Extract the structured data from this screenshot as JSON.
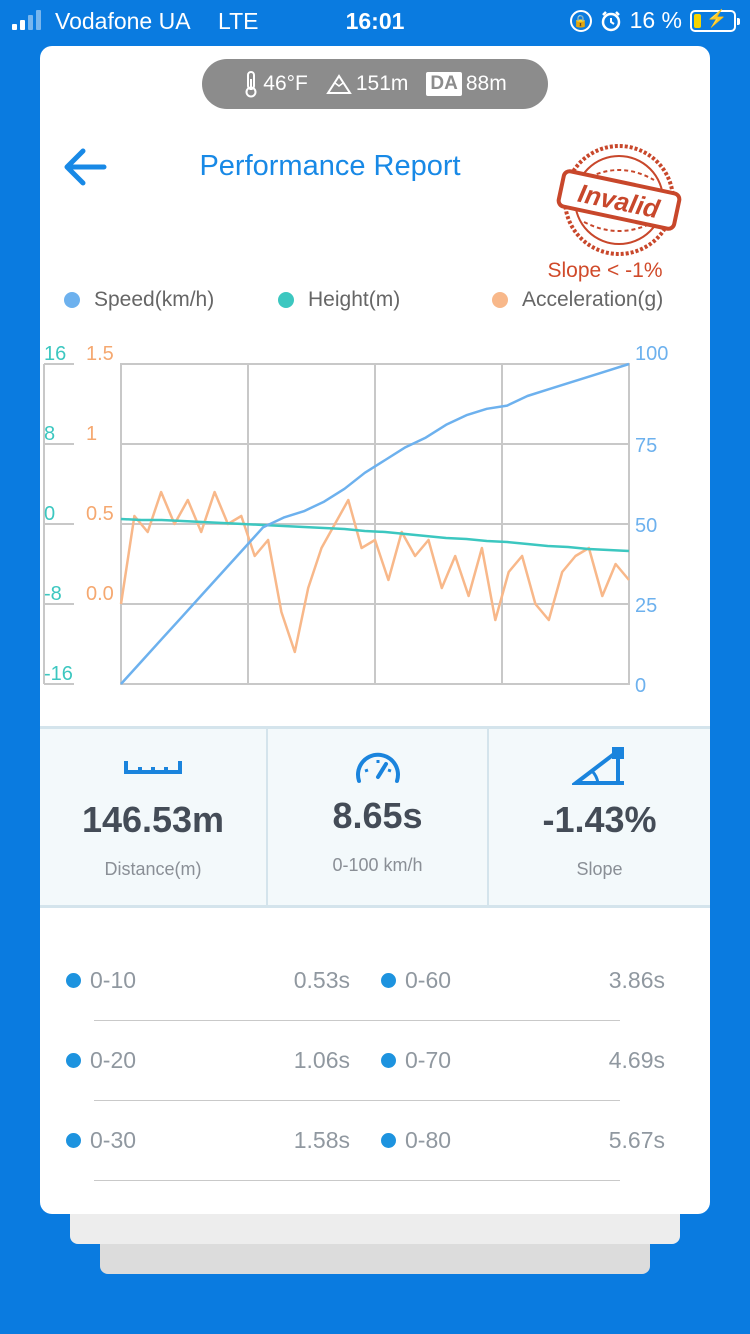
{
  "status_bar": {
    "carrier": "Vodafone UA",
    "network": "LTE",
    "time": "16:01",
    "battery": "16 %",
    "icons": [
      "orientation-lock-icon",
      "alarm-icon",
      "battery-charging-icon"
    ]
  },
  "env": {
    "temperature": "46°F",
    "altitude": "151m",
    "da_badge": "DA",
    "density_altitude": "88m"
  },
  "header": {
    "title": "Performance Report",
    "stamp_text": "Invalid",
    "stamp_note": "Slope < -1%"
  },
  "colors": {
    "brand_blue": "#1889e6",
    "speed": "#6db1ee",
    "height": "#3cc7c0",
    "acceleration": "#f8b88a",
    "stamp": "#d04a2a"
  },
  "legend": {
    "speed": "Speed(km/h)",
    "height": "Height(m)",
    "acceleration": "Acceleration(g)"
  },
  "chart_data": {
    "type": "line",
    "axes": {
      "height_ticks": [
        "16",
        "8",
        "0",
        "-8",
        "-16"
      ],
      "accel_ticks": [
        "1.5",
        "1",
        "0.5",
        "0.0"
      ],
      "speed_ticks": [
        "100",
        "75",
        "50",
        "25",
        "0"
      ]
    },
    "ylim_speed": [
      0,
      100
    ],
    "ylim_height": [
      -16,
      16
    ],
    "ylim_accel": [
      -0.5,
      1.5
    ],
    "grid": true,
    "series": [
      {
        "name": "Speed(km/h)",
        "axis": "speed",
        "values": [
          0,
          7,
          14,
          21,
          28,
          35,
          42,
          49,
          52,
          54,
          57,
          61,
          66,
          70,
          74,
          77,
          81,
          84,
          86,
          87,
          90,
          92,
          94,
          96,
          98,
          100
        ]
      },
      {
        "name": "Height(m)",
        "axis": "height",
        "values": [
          0.5,
          0.4,
          0.4,
          0.3,
          0.2,
          0.1,
          0.0,
          -0.1,
          -0.2,
          -0.3,
          -0.4,
          -0.5,
          -0.7,
          -0.8,
          -1.0,
          -1.2,
          -1.4,
          -1.5,
          -1.7,
          -1.8,
          -2.0,
          -2.2,
          -2.3,
          -2.5,
          -2.6,
          -2.7
        ]
      },
      {
        "name": "Acceleration(g)",
        "axis": "accel",
        "values": [
          0.0,
          0.55,
          0.45,
          0.7,
          0.5,
          0.65,
          0.45,
          0.7,
          0.5,
          0.55,
          0.3,
          0.4,
          -0.05,
          -0.3,
          0.1,
          0.35,
          0.5,
          0.65,
          0.35,
          0.4,
          0.15,
          0.45,
          0.3,
          0.4,
          0.1,
          0.3,
          0.05,
          0.35,
          -0.1,
          0.2,
          0.3,
          0.0,
          -0.1,
          0.2,
          0.3,
          0.35,
          0.05,
          0.25,
          0.15
        ]
      }
    ]
  },
  "stats": [
    {
      "icon": "ruler-icon",
      "value": "146.53m",
      "label": "Distance(m)"
    },
    {
      "icon": "speedometer-icon",
      "value": "8.65s",
      "label": "0-100 km/h"
    },
    {
      "icon": "slope-icon",
      "value": "-1.43%",
      "label": "Slope"
    }
  ],
  "splits": [
    {
      "left_range": "0-10",
      "left_time": "0.53s",
      "right_range": "0-60",
      "right_time": "3.86s"
    },
    {
      "left_range": "0-20",
      "left_time": "1.06s",
      "right_range": "0-70",
      "right_time": "4.69s"
    },
    {
      "left_range": "0-30",
      "left_time": "1.58s",
      "right_range": "0-80",
      "right_time": "5.67s"
    }
  ]
}
